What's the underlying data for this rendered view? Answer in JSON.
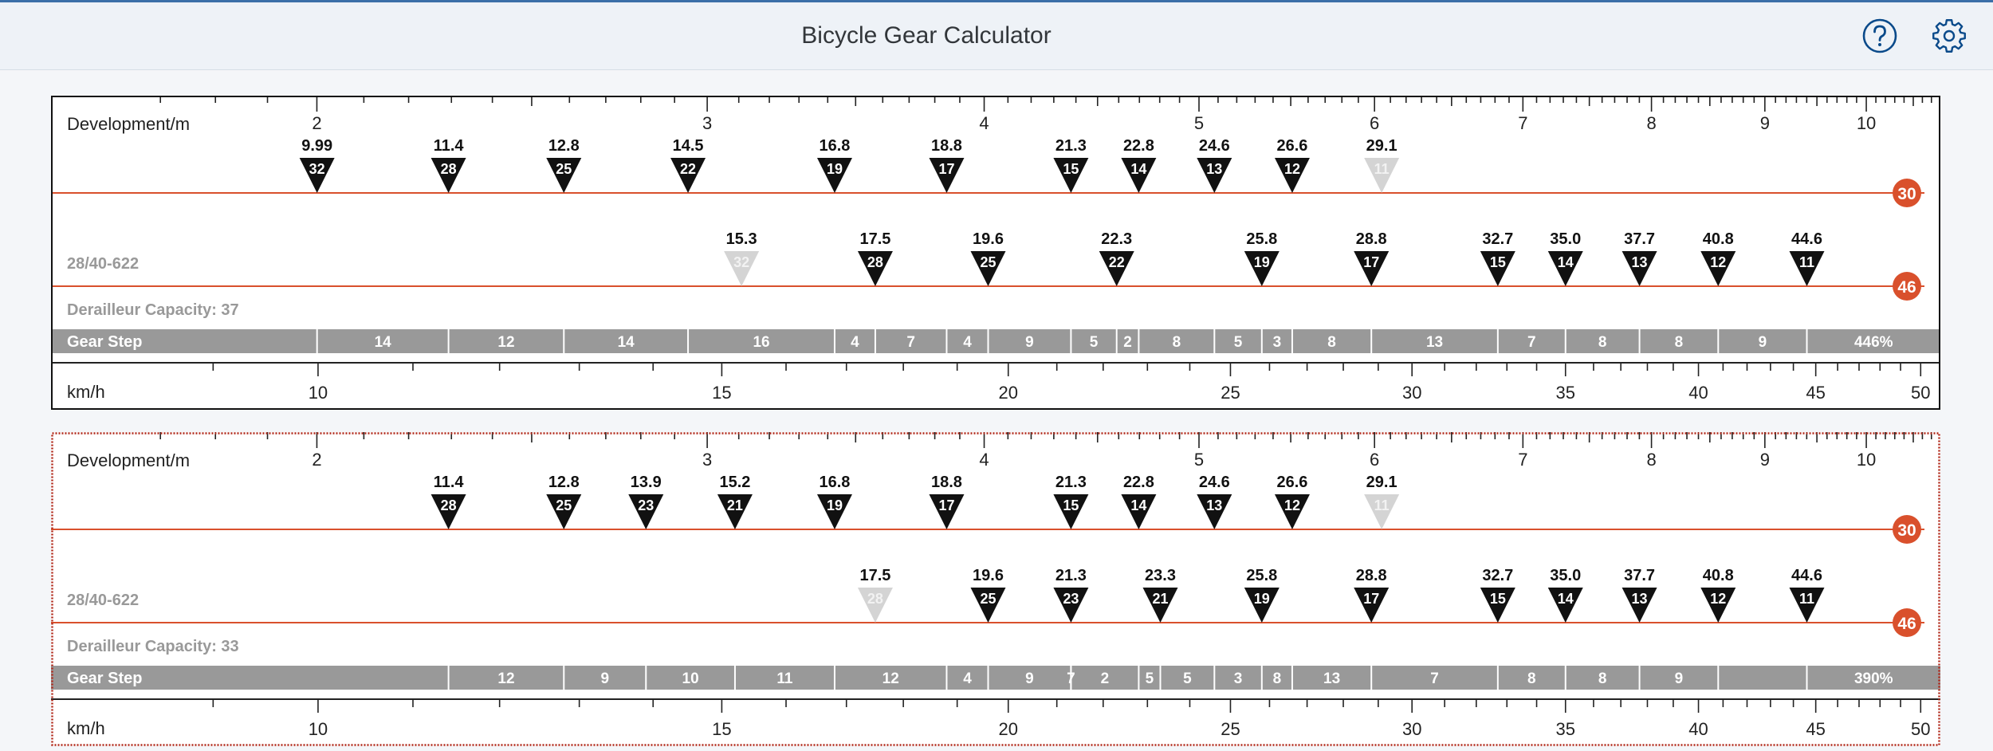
{
  "app": {
    "title": "Bicycle Gear Calculator",
    "header_icons": [
      "help-icon",
      "settings-icon"
    ]
  },
  "colors": {
    "chainring_line": "#d9502c",
    "gear_marker": "#111111",
    "unused_marker": "#d4d4d4",
    "gear_step_band": "#999999",
    "faded_text": "#999999",
    "selected_border": "#b0281a"
  },
  "chart_data": [
    {
      "type": "scatter",
      "selected": false,
      "axis_top": {
        "label": "Development/m",
        "scale": "log",
        "range": [
          1.6,
          10.8
        ],
        "major_ticks": [
          2,
          3,
          4,
          5,
          6,
          7,
          8,
          9,
          10
        ]
      },
      "axis_bottom": {
        "label": "km/h",
        "scale": "log",
        "range": [
          8.05,
          51.0
        ],
        "major_ticks": [
          10,
          15,
          20,
          25,
          30,
          35,
          40,
          45,
          50
        ]
      },
      "tire": "28/40-622",
      "derailleur_capacity": "Derailleur Capacity: 37",
      "gear_step_label": "Gear Step",
      "chainrings": [
        {
          "teeth": 30,
          "gears": [
            {
              "cog": 32,
              "speed": "9.99",
              "used": true
            },
            {
              "cog": 28,
              "speed": "11.4",
              "used": true
            },
            {
              "cog": 25,
              "speed": "12.8",
              "used": true
            },
            {
              "cog": 22,
              "speed": "14.5",
              "used": true
            },
            {
              "cog": 19,
              "speed": "16.8",
              "used": true
            },
            {
              "cog": 17,
              "speed": "18.8",
              "used": true
            },
            {
              "cog": 15,
              "speed": "21.3",
              "used": true
            },
            {
              "cog": 14,
              "speed": "22.8",
              "used": true
            },
            {
              "cog": 13,
              "speed": "24.6",
              "used": true
            },
            {
              "cog": 12,
              "speed": "26.6",
              "used": true
            },
            {
              "cog": 11,
              "speed": "29.1",
              "used": false
            }
          ]
        },
        {
          "teeth": 46,
          "gears": [
            {
              "cog": 32,
              "speed": "15.3",
              "used": false
            },
            {
              "cog": 28,
              "speed": "17.5",
              "used": true
            },
            {
              "cog": 25,
              "speed": "19.6",
              "used": true
            },
            {
              "cog": 22,
              "speed": "22.3",
              "used": true
            },
            {
              "cog": 19,
              "speed": "25.8",
              "used": true
            },
            {
              "cog": 17,
              "speed": "28.8",
              "used": true
            },
            {
              "cog": 15,
              "speed": "32.7",
              "used": true
            },
            {
              "cog": 14,
              "speed": "35.0",
              "used": true
            },
            {
              "cog": 13,
              "speed": "37.7",
              "used": true
            },
            {
              "cog": 12,
              "speed": "40.8",
              "used": true
            },
            {
              "cog": 11,
              "speed": "44.6",
              "used": true
            }
          ]
        }
      ],
      "gear_steps": [
        "14",
        "12",
        "14",
        "16",
        "4",
        "7",
        "4",
        "9",
        "5",
        "2",
        "8",
        "5",
        "3",
        "8",
        "13",
        "7",
        "8",
        "8",
        "9"
      ],
      "gear_range": "446%"
    },
    {
      "type": "scatter",
      "selected": true,
      "axis_top": {
        "label": "Development/m",
        "scale": "log",
        "range": [
          1.6,
          10.8
        ],
        "major_ticks": [
          2,
          3,
          4,
          5,
          6,
          7,
          8,
          9,
          10
        ]
      },
      "axis_bottom": {
        "label": "km/h",
        "scale": "log",
        "range": [
          8.05,
          51.0
        ],
        "major_ticks": [
          10,
          15,
          20,
          25,
          30,
          35,
          40,
          45,
          50
        ]
      },
      "tire": "28/40-622",
      "derailleur_capacity": "Derailleur Capacity: 33",
      "gear_step_label": "Gear Step",
      "chainrings": [
        {
          "teeth": 30,
          "gears": [
            {
              "cog": 28,
              "speed": "11.4",
              "used": true
            },
            {
              "cog": 25,
              "speed": "12.8",
              "used": true
            },
            {
              "cog": 23,
              "speed": "13.9",
              "used": true
            },
            {
              "cog": 21,
              "speed": "15.2",
              "used": true
            },
            {
              "cog": 19,
              "speed": "16.8",
              "used": true
            },
            {
              "cog": 17,
              "speed": "18.8",
              "used": true
            },
            {
              "cog": 15,
              "speed": "21.3",
              "used": true
            },
            {
              "cog": 14,
              "speed": "22.8",
              "used": true
            },
            {
              "cog": 13,
              "speed": "24.6",
              "used": true
            },
            {
              "cog": 12,
              "speed": "26.6",
              "used": true
            },
            {
              "cog": 11,
              "speed": "29.1",
              "used": false
            }
          ]
        },
        {
          "teeth": 46,
          "gears": [
            {
              "cog": 28,
              "speed": "17.5",
              "used": false
            },
            {
              "cog": 25,
              "speed": "19.6",
              "used": true
            },
            {
              "cog": 23,
              "speed": "21.3",
              "used": true
            },
            {
              "cog": 21,
              "speed": "23.3",
              "used": true
            },
            {
              "cog": 19,
              "speed": "25.8",
              "used": true
            },
            {
              "cog": 17,
              "speed": "28.8",
              "used": true
            },
            {
              "cog": 15,
              "speed": "32.7",
              "used": true
            },
            {
              "cog": 14,
              "speed": "35.0",
              "used": true
            },
            {
              "cog": 13,
              "speed": "37.7",
              "used": true
            },
            {
              "cog": 12,
              "speed": "40.8",
              "used": true
            },
            {
              "cog": 11,
              "speed": "44.6",
              "used": true
            }
          ]
        }
      ],
      "gear_steps": [
        "12",
        "9",
        "10",
        "11",
        "12",
        "4",
        "9",
        "7",
        "2",
        "5",
        "5",
        "3",
        "8",
        "13",
        "7",
        "8",
        "8",
        "9"
      ],
      "gear_range": "390%"
    }
  ]
}
